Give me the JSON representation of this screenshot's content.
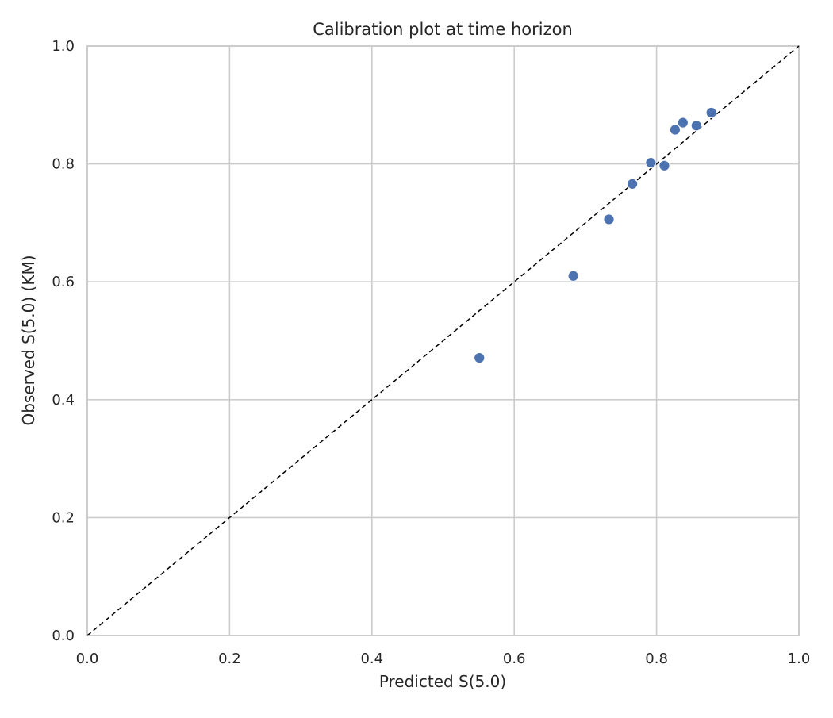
{
  "chart_data": {
    "type": "scatter",
    "title": "Calibration plot at time horizon",
    "xlabel": "Predicted S(5.0)",
    "ylabel": "Observed S(5.0) (KM)",
    "xlim": [
      0.0,
      1.0
    ],
    "ylim": [
      0.0,
      1.0
    ],
    "x_ticks": [
      "0.0",
      "0.2",
      "0.4",
      "0.6",
      "0.8",
      "1.0"
    ],
    "y_ticks": [
      "0.0",
      "0.2",
      "0.4",
      "0.6",
      "0.8",
      "1.0"
    ],
    "grid": true,
    "reference_line": {
      "from": [
        0.0,
        0.0
      ],
      "to": [
        1.0,
        1.0
      ],
      "style": "dashed",
      "color": "#000000"
    },
    "series": [
      {
        "color": "#4c72b0",
        "points": [
          {
            "x": 0.551,
            "y": 0.471
          },
          {
            "x": 0.683,
            "y": 0.61
          },
          {
            "x": 0.733,
            "y": 0.706
          },
          {
            "x": 0.766,
            "y": 0.766
          },
          {
            "x": 0.792,
            "y": 0.802
          },
          {
            "x": 0.811,
            "y": 0.797
          },
          {
            "x": 0.826,
            "y": 0.858
          },
          {
            "x": 0.837,
            "y": 0.87
          },
          {
            "x": 0.856,
            "y": 0.865
          },
          {
            "x": 0.877,
            "y": 0.887
          }
        ]
      }
    ]
  }
}
